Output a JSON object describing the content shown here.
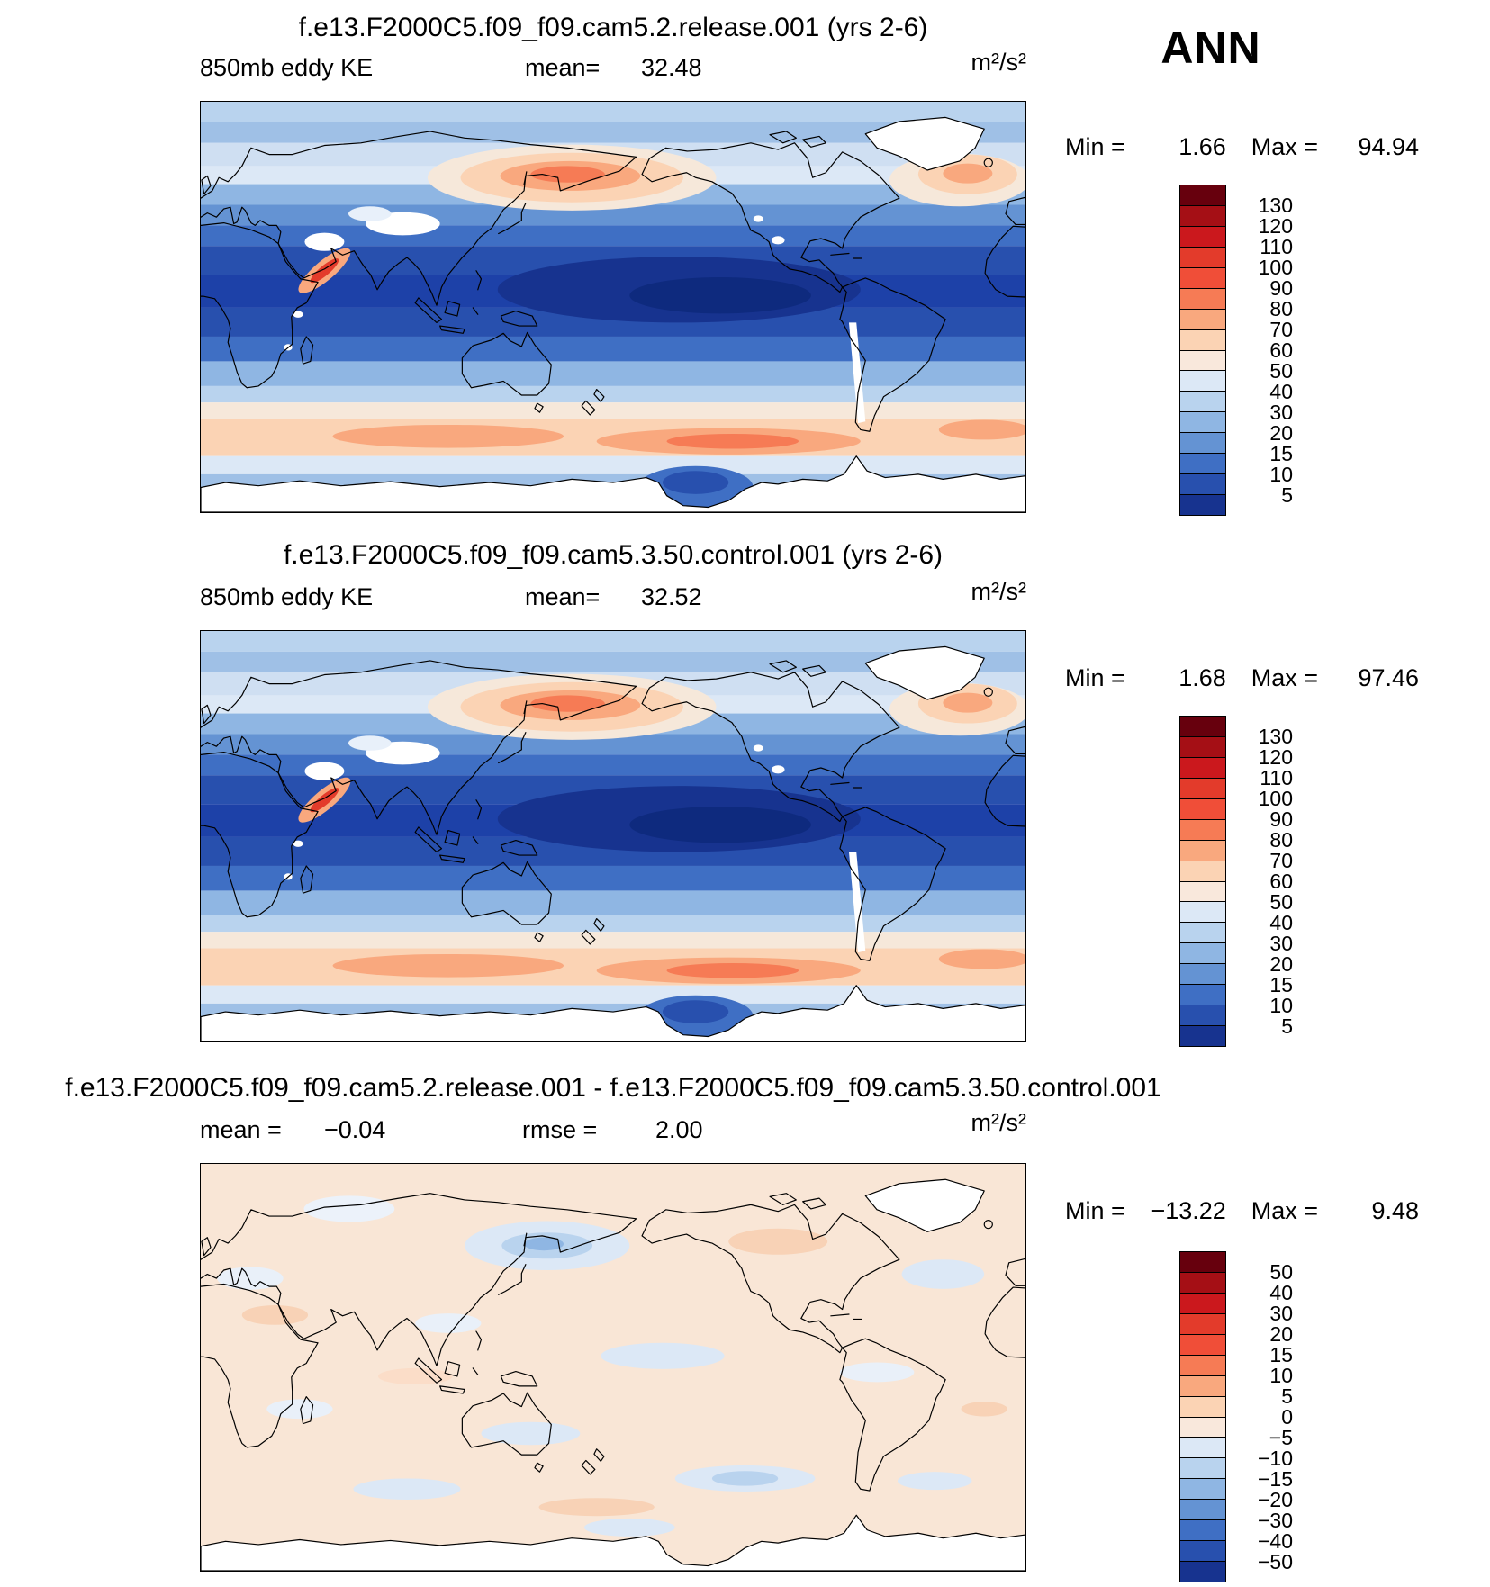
{
  "season": "ANN",
  "panels": [
    {
      "title": "f.e13.F2000C5.f09_f09.cam5.2.release.001 (yrs 2-6)",
      "field": "850mb eddy KE",
      "mean_label": "mean=",
      "mean_value": "32.48",
      "units": "m²/s²",
      "min_label": "Min =",
      "min_value": "1.66",
      "max_label": "Max =",
      "max_value": "94.94",
      "colorbar": {
        "ticks": [
          "130",
          "120",
          "110",
          "100",
          "90",
          "80",
          "70",
          "60",
          "50",
          "40",
          "30",
          "20",
          "15",
          "10",
          "5"
        ],
        "palette": [
          "#67000d",
          "#a50f15",
          "#cb181d",
          "#e33b2b",
          "#f04e38",
          "#f67b55",
          "#f9a87e",
          "#fbd3b4",
          "#f9e8dc",
          "#dce8f6",
          "#b9d3ee",
          "#8fb6e3",
          "#6493d3",
          "#3f6fc4",
          "#2850ae",
          "#17338f"
        ]
      }
    },
    {
      "title": "f.e13.F2000C5.f09_f09.cam5.3.50.control.001 (yrs 2-6)",
      "field": "850mb eddy KE",
      "mean_label": "mean=",
      "mean_value": "32.52",
      "units": "m²/s²",
      "min_label": "Min =",
      "min_value": "1.68",
      "max_label": "Max =",
      "max_value": "97.46",
      "colorbar": {
        "ticks": [
          "130",
          "120",
          "110",
          "100",
          "90",
          "80",
          "70",
          "60",
          "50",
          "40",
          "30",
          "20",
          "15",
          "10",
          "5"
        ],
        "palette": [
          "#67000d",
          "#a50f15",
          "#cb181d",
          "#e33b2b",
          "#f04e38",
          "#f67b55",
          "#f9a87e",
          "#fbd3b4",
          "#f9e8dc",
          "#dce8f6",
          "#b9d3ee",
          "#8fb6e3",
          "#6493d3",
          "#3f6fc4",
          "#2850ae",
          "#17338f"
        ]
      }
    },
    {
      "title": "f.e13.F2000C5.f09_f09.cam5.2.release.001 - f.e13.F2000C5.f09_f09.cam5.3.50.control.001",
      "mean_label": "mean =",
      "mean_value": "−0.04",
      "rmse_label": "rmse =",
      "rmse_value": "2.00",
      "units": "m²/s²",
      "min_label": "Min =",
      "min_value": "−13.22",
      "max_label": "Max =",
      "max_value": "9.48",
      "colorbar": {
        "ticks": [
          "50",
          "40",
          "30",
          "20",
          "15",
          "10",
          "5",
          "0",
          "−5",
          "−10",
          "−15",
          "−20",
          "−30",
          "−40",
          "−50"
        ],
        "palette": [
          "#67000d",
          "#a50f15",
          "#cb181d",
          "#e33b2b",
          "#f04e38",
          "#f67b55",
          "#f9a87e",
          "#fbd3b4",
          "#f9e8dc",
          "#dce8f6",
          "#b9d3ee",
          "#8fb6e3",
          "#6493d3",
          "#3f6fc4",
          "#2850ae",
          "#17338f"
        ]
      }
    }
  ],
  "chart_data": [
    {
      "type": "heatmap",
      "title": "f.e13.F2000C5.f09_f09.cam5.2.release.001 (yrs 2-6)",
      "variable": "850mb eddy KE",
      "units": "m²/s²",
      "mean": 32.48,
      "min": 1.66,
      "max": 94.94,
      "contour_levels": [
        5,
        10,
        15,
        20,
        30,
        40,
        50,
        60,
        70,
        80,
        90,
        100,
        110,
        120,
        130
      ],
      "legend_position": "right",
      "layout": "global latitude-longitude contour map, 0-360E, low values (blue) in tropics, high values (orange) in midlatitude storm tracks"
    },
    {
      "type": "heatmap",
      "title": "f.e13.F2000C5.f09_f09.cam5.3.50.control.001 (yrs 2-6)",
      "variable": "850mb eddy KE",
      "units": "m²/s²",
      "mean": 32.52,
      "min": 1.68,
      "max": 97.46,
      "contour_levels": [
        5,
        10,
        15,
        20,
        30,
        40,
        50,
        60,
        70,
        80,
        90,
        100,
        110,
        120,
        130
      ],
      "legend_position": "right",
      "layout": "global latitude-longitude contour map, 0-360E, low values (blue) in tropics, high values (orange) in midlatitude storm tracks"
    },
    {
      "type": "heatmap",
      "title": "f.e13.F2000C5.f09_f09.cam5.2.release.001 - f.e13.F2000C5.f09_f09.cam5.3.50.control.001",
      "variable": "850mb eddy KE difference",
      "units": "m²/s²",
      "mean": -0.04,
      "rmse": 2.0,
      "min": -13.22,
      "max": 9.48,
      "contour_levels": [
        -50,
        -40,
        -30,
        -20,
        -15,
        -10,
        -5,
        0,
        5,
        10,
        15,
        20,
        30,
        40,
        50
      ],
      "legend_position": "right",
      "layout": "global latitude-longitude difference map, mostly near-zero pale tones with small positive/negative patches"
    }
  ]
}
